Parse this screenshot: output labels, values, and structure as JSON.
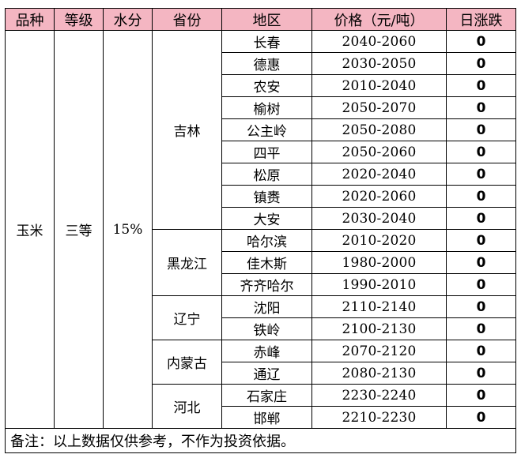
{
  "header": {
    "variety": "品种",
    "grade": "等级",
    "moisture": "水分",
    "province": "省份",
    "region": "地区",
    "price": "价格（元/吨）",
    "daily_change": "日涨跌"
  },
  "product": {
    "variety": "玉米",
    "grade": "三等",
    "moisture": "15%"
  },
  "provinces": [
    {
      "name": "吉林",
      "rows": [
        {
          "region": "长春",
          "price": "2040-2060",
          "change": "0"
        },
        {
          "region": "德惠",
          "price": "2030-2050",
          "change": "0"
        },
        {
          "region": "农安",
          "price": "2010-2040",
          "change": "0"
        },
        {
          "region": "榆树",
          "price": "2050-2070",
          "change": "0"
        },
        {
          "region": "公主岭",
          "price": "2050-2080",
          "change": "0"
        },
        {
          "region": "四平",
          "price": "2050-2060",
          "change": "0"
        },
        {
          "region": "松原",
          "price": "2020-2040",
          "change": "0"
        },
        {
          "region": "镇赉",
          "price": "2020-2060",
          "change": "0"
        },
        {
          "region": "大安",
          "price": "2030-2040",
          "change": "0"
        }
      ]
    },
    {
      "name": "黑龙江",
      "rows": [
        {
          "region": "哈尔滨",
          "price": "2010-2020",
          "change": "0"
        },
        {
          "region": "佳木斯",
          "price": "1980-2000",
          "change": "0"
        },
        {
          "region": "齐齐哈尔",
          "price": "1990-2010",
          "change": "0"
        }
      ]
    },
    {
      "name": "辽宁",
      "rows": [
        {
          "region": "沈阳",
          "price": "2110-2140",
          "change": "0"
        },
        {
          "region": "铁岭",
          "price": "2100-2130",
          "change": "0"
        }
      ]
    },
    {
      "name": "内蒙古",
      "rows": [
        {
          "region": "赤峰",
          "price": "2070-2120",
          "change": "0"
        },
        {
          "region": "通辽",
          "price": "2080-2130",
          "change": "0"
        }
      ]
    },
    {
      "name": "河北",
      "rows": [
        {
          "region": "石家庄",
          "price": "2230-2240",
          "change": "0"
        },
        {
          "region": "邯郸",
          "price": "2210-2230",
          "change": "0"
        }
      ]
    }
  ],
  "note": "备注：以上数据仅供参考，不作为投资依据。",
  "colors": {
    "header_bg": "#f4b6c2"
  }
}
